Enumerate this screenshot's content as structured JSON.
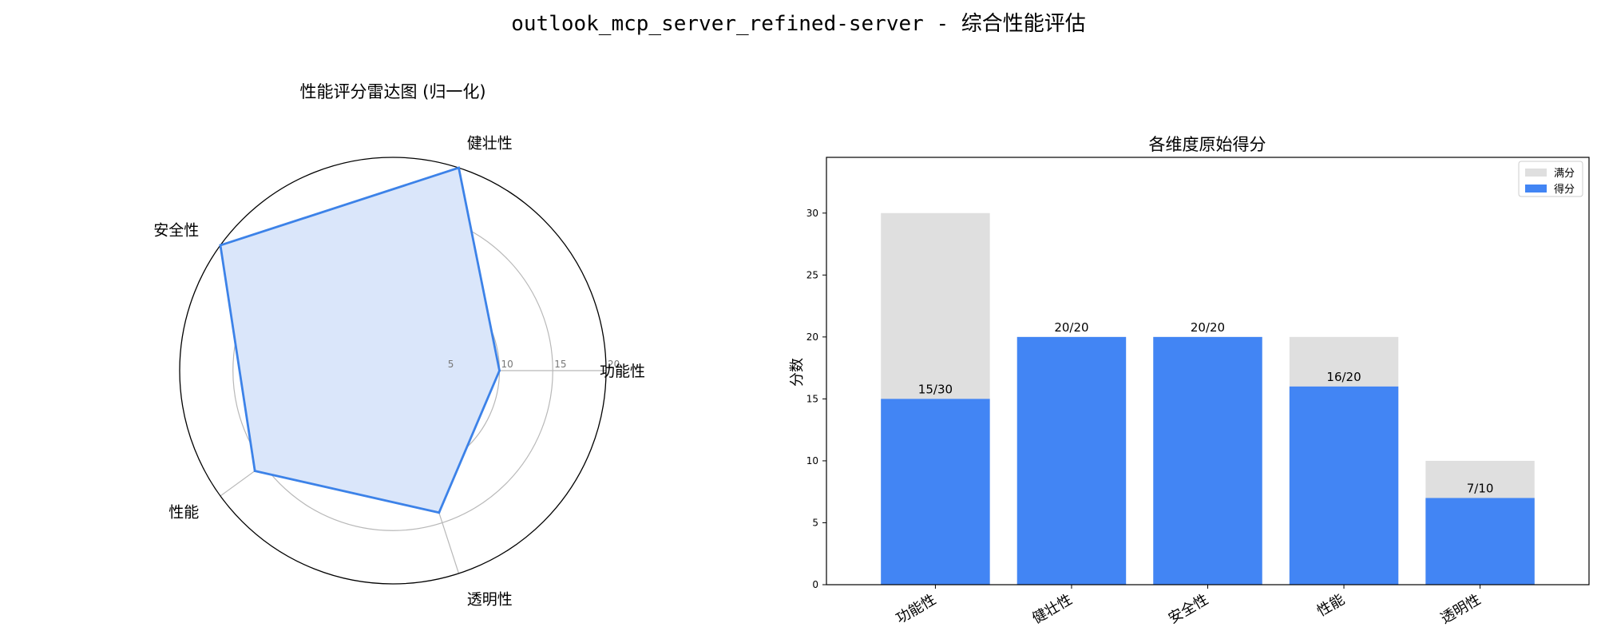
{
  "figure": {
    "suptitle": "outlook_mcp_server_refined-server - 综合性能评估"
  },
  "chart_data": [
    {
      "type": "radar",
      "title": "性能评分雷达图 (归一化)",
      "categories": [
        "功能性",
        "健壮性",
        "安全性",
        "性能",
        "透明性"
      ],
      "values": [
        10,
        20,
        20,
        16,
        14
      ],
      "rmax": 20,
      "rticks": [
        5,
        10,
        15,
        20
      ],
      "rtick_labels": [
        "5",
        "10",
        "15",
        "20"
      ],
      "colors": {
        "line": "#3c82e8",
        "fill": "#dae6fa"
      }
    },
    {
      "type": "bar",
      "title": "各维度原始得分",
      "categories": [
        "功能性",
        "健壮性",
        "安全性",
        "性能",
        "透明性"
      ],
      "series": [
        {
          "name": "满分",
          "values": [
            30,
            20,
            20,
            20,
            10
          ],
          "color": "#dfdfdf"
        },
        {
          "name": "得分",
          "values": [
            15,
            20,
            20,
            16,
            7
          ],
          "color": "#4285f4"
        }
      ],
      "data_labels": [
        "15/30",
        "20/20",
        "20/20",
        "16/20",
        "7/10"
      ],
      "xlabel": "",
      "ylabel": "分数",
      "ylim": [
        0,
        34.5
      ],
      "yticks": [
        0,
        5,
        10,
        15,
        20,
        25,
        30
      ],
      "legend": "top-right"
    }
  ]
}
